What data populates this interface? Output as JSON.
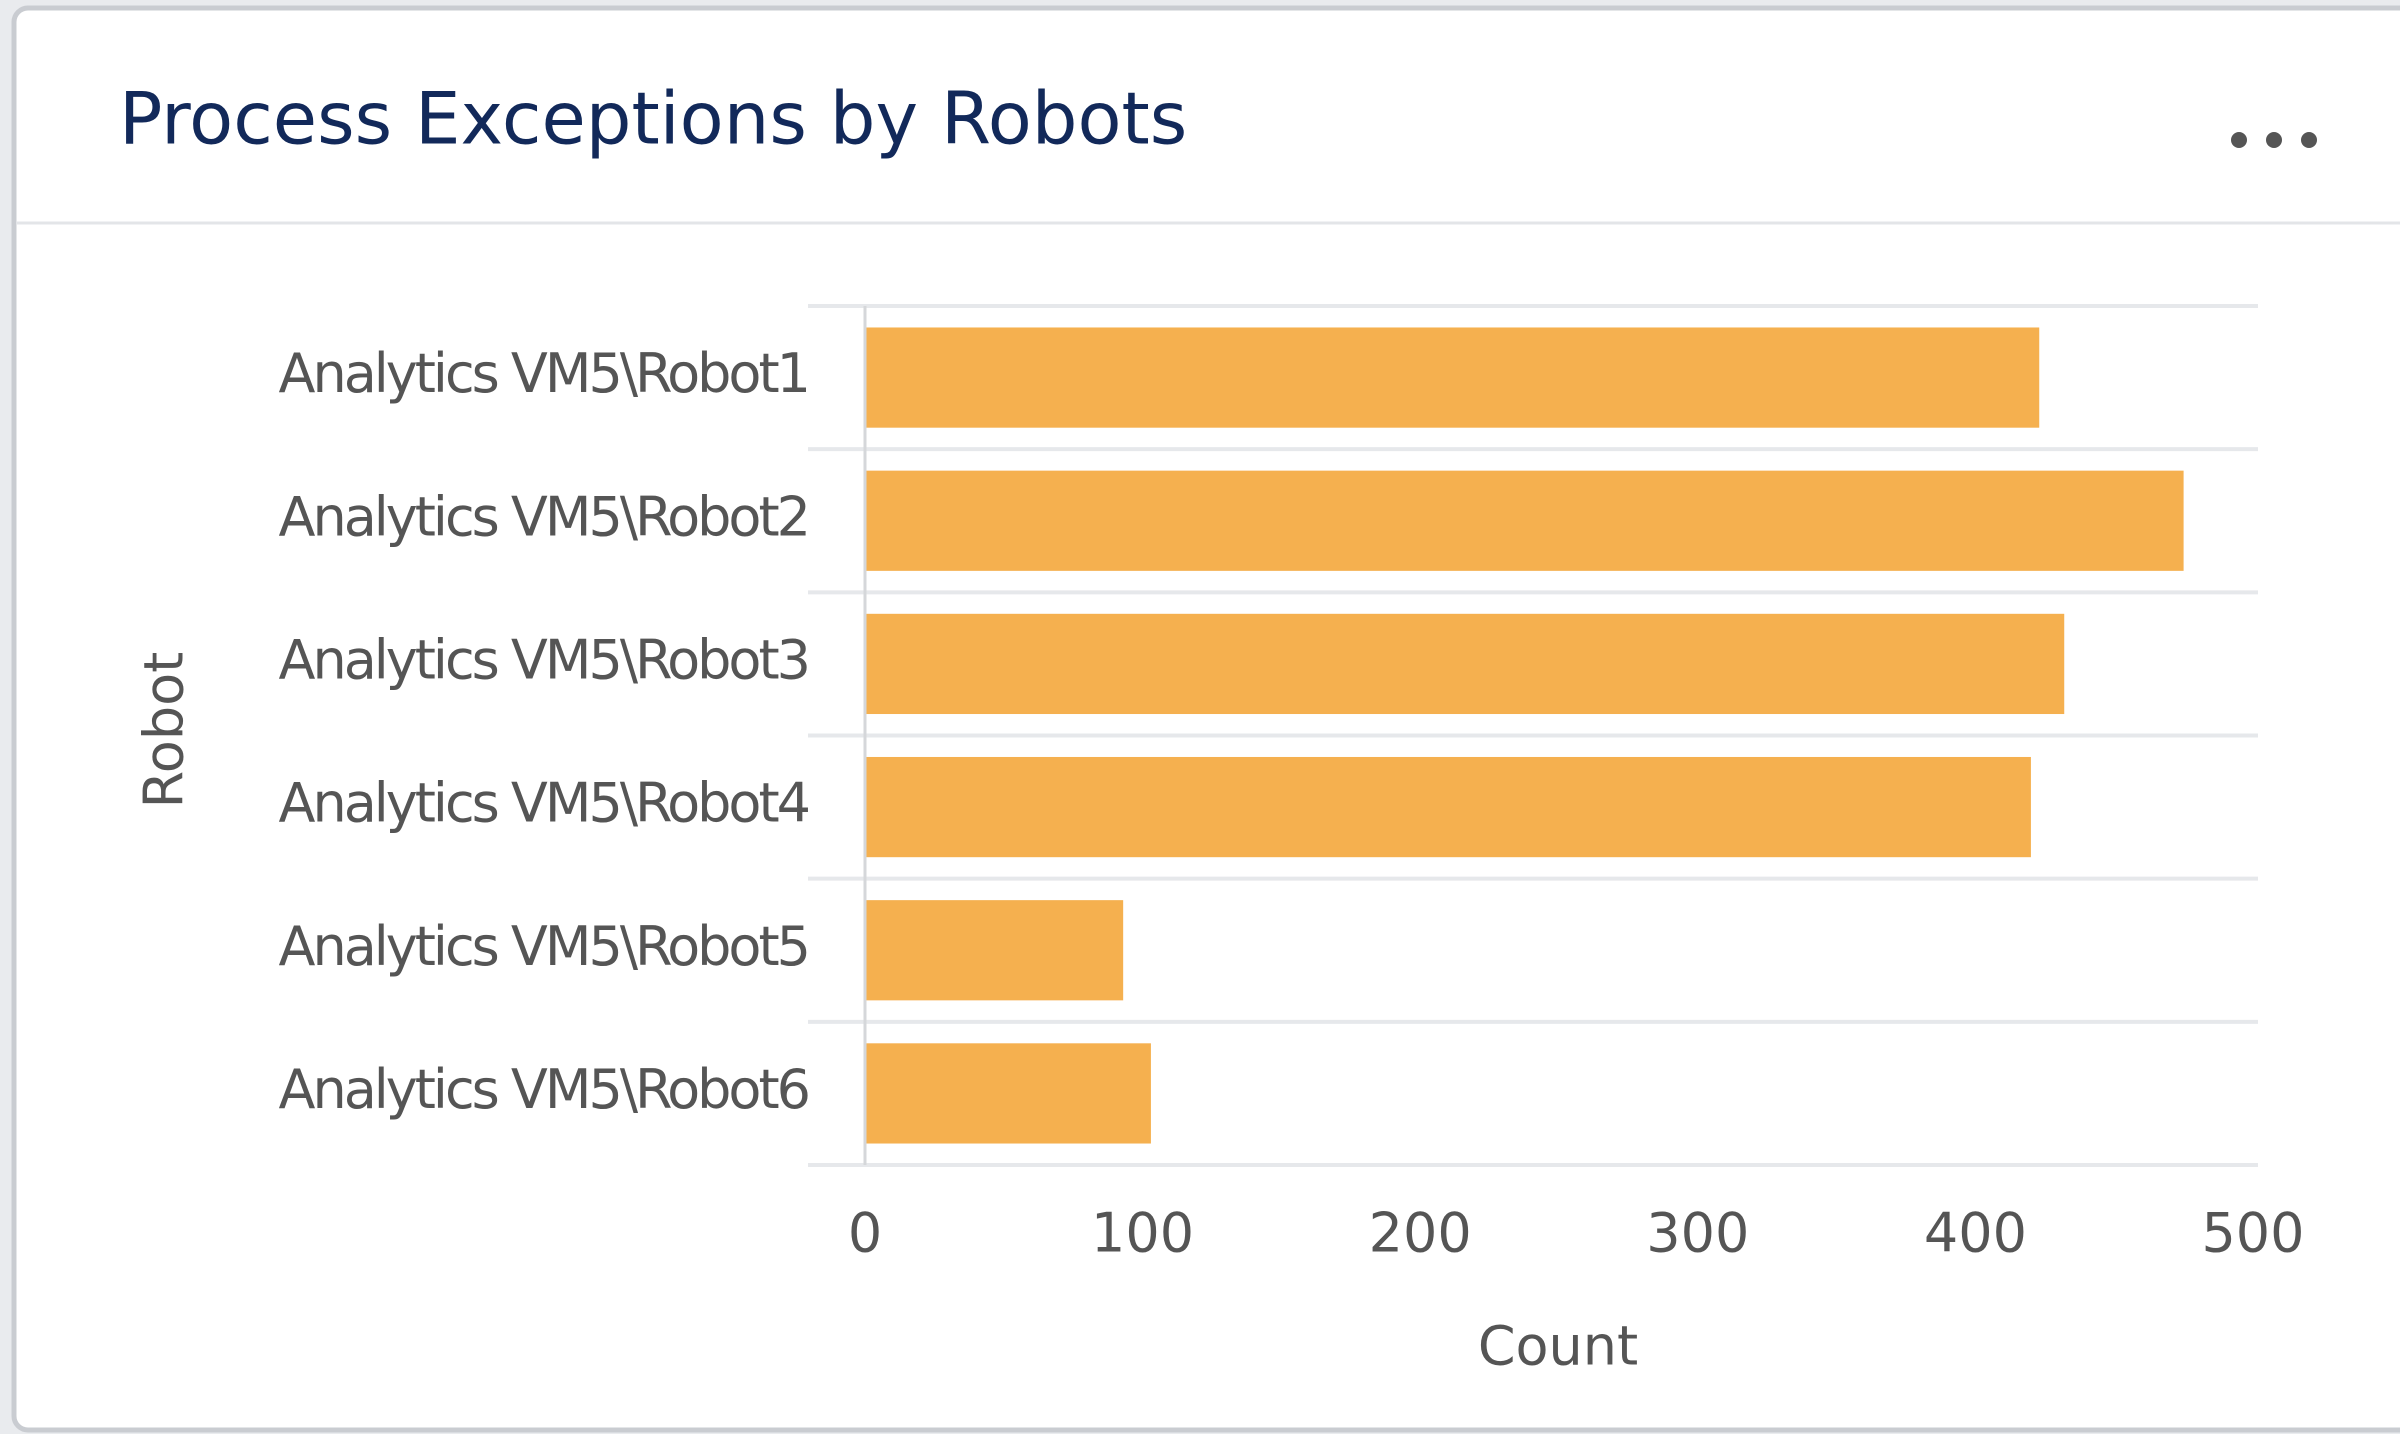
{
  "chart_data": {
    "type": "bar",
    "orientation": "horizontal",
    "title": "Process Exceptions by Robots",
    "categories": [
      "Analytics VM5\\Robot1",
      "Analytics VM5\\Robot2",
      "Analytics VM5\\Robot3",
      "Analytics VM5\\Robot4",
      "Analytics VM5\\Robot5",
      "Analytics VM5\\Robot6"
    ],
    "values": [
      423,
      475,
      432,
      420,
      93,
      103
    ],
    "color": "#f5b04f",
    "xlabel": "Count",
    "ylabel": "Robot",
    "xlim": [
      0,
      500
    ],
    "xticks": [
      0,
      100,
      200,
      300,
      400,
      500
    ],
    "grid": false
  }
}
